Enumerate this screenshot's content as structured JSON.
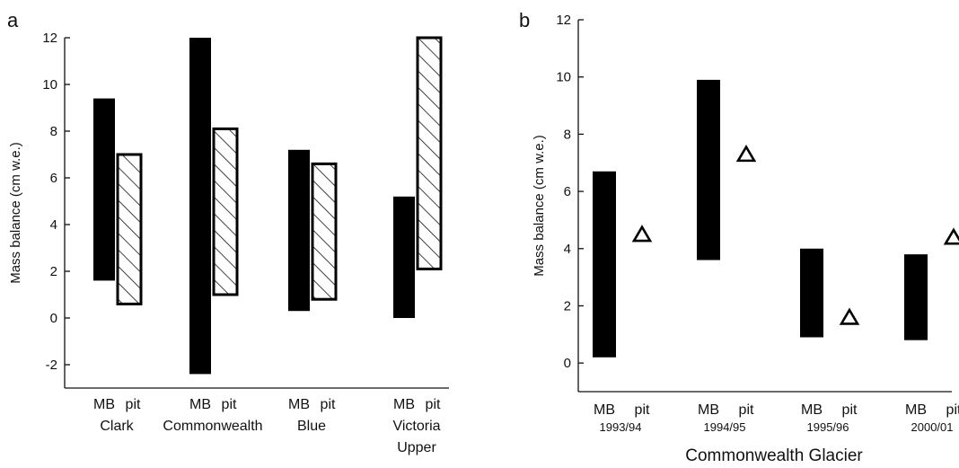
{
  "chart_data": [
    {
      "panel": "a",
      "type": "floating-bar",
      "title": "",
      "xlabel": "",
      "ylabel": "Mass balance (cm w.e.)",
      "ylim": [
        -3,
        12
      ],
      "yticks": [
        -2,
        0,
        2,
        4,
        6,
        8,
        10,
        12
      ],
      "ytick_labels": [
        "-2",
        "0",
        "2",
        "4",
        "6",
        "8",
        "10",
        "12"
      ],
      "bar_labels": [
        "MB",
        "pit"
      ],
      "groups": [
        {
          "label": "Clark",
          "mb": [
            1.6,
            9.4
          ],
          "pit": [
            0.6,
            7.0
          ]
        },
        {
          "label": "Commonwealth",
          "mb": [
            -2.4,
            12.0
          ],
          "pit": [
            1.0,
            8.1
          ]
        },
        {
          "label": "Blue",
          "mb": [
            0.3,
            7.2
          ],
          "pit": [
            0.8,
            6.6
          ]
        },
        {
          "label": "Victoria\nUpper",
          "mb": [
            0.0,
            5.2
          ],
          "pit": [
            2.1,
            12.0
          ]
        }
      ],
      "mb_style": "solid black",
      "pit_style": "hatched"
    },
    {
      "panel": "b",
      "type": "floating-bar",
      "title": "",
      "xlabel": "Commonwealth Glacier",
      "ylabel": "Mass balance (cm w.e.)",
      "ylim": [
        -1,
        12
      ],
      "yticks": [
        0,
        2,
        4,
        6,
        8,
        10,
        12
      ],
      "ytick_labels": [
        "0",
        "2",
        "4",
        "6",
        "8",
        "10",
        "12"
      ],
      "bar_labels": [
        "MB",
        "pit"
      ],
      "groups": [
        {
          "label": "1993/94",
          "mb": [
            0.2,
            6.7
          ],
          "pit": 4.5
        },
        {
          "label": "1994/95",
          "mb": [
            3.6,
            9.9
          ],
          "pit": 7.3
        },
        {
          "label": "1995/96",
          "mb": [
            0.9,
            4.0
          ],
          "pit": 1.6
        },
        {
          "label": "2000/01",
          "mb": [
            0.8,
            3.8
          ],
          "pit": 4.4
        }
      ],
      "mb_style": "solid black",
      "pit_style": "open triangle marker"
    }
  ],
  "panel_labels": [
    "a",
    "b"
  ]
}
